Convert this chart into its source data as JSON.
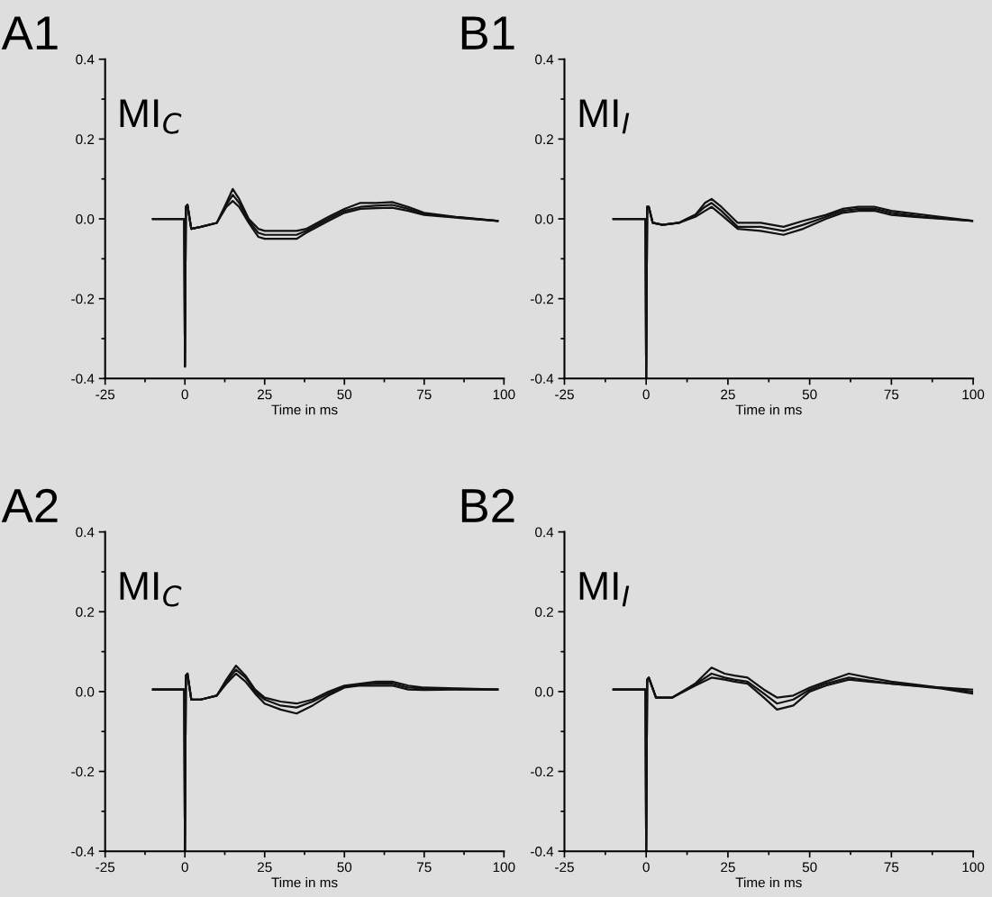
{
  "chart_data": [
    {
      "type": "line",
      "xlabel": "Time in ms",
      "annotations": [
        "A1",
        "MI$_{C}$"
      ],
      "xlim": [
        -25,
        100
      ],
      "ylim": [
        -0.4,
        0.4
      ],
      "xticks": [
        -25,
        0,
        25,
        50,
        75,
        100
      ],
      "yticks": [
        {
          "value": -0.4,
          "label": "-0.4"
        },
        {
          "value": -0.2,
          "label": "-0.2"
        },
        {
          "value": 0,
          "label": "0.0"
        },
        {
          "value": 0.2,
          "label": "0.2"
        },
        {
          "value": 0.4,
          "label": "0.4"
        }
      ],
      "x": [
        -10,
        -0.2,
        0,
        0.3,
        0.8,
        2,
        5,
        10,
        13,
        15,
        17,
        20,
        23,
        25,
        30,
        35,
        38,
        45,
        50,
        55,
        60,
        65,
        70,
        75,
        85,
        98
      ],
      "series": [
        {
          "color": "#111111",
          "values": [
            0,
            0,
            -0.37,
            0.03,
            0.035,
            -0.025,
            -0.02,
            -0.01,
            0.04,
            0.075,
            0.05,
            0,
            -0.025,
            -0.03,
            -0.03,
            -0.03,
            -0.025,
            0.005,
            0.025,
            0.04,
            0.04,
            0.042,
            0.03,
            0.015,
            0.005,
            -0.005
          ]
        },
        {
          "color": "#111111",
          "values": [
            0,
            0,
            -0.37,
            0.03,
            0.035,
            -0.025,
            -0.02,
            -0.01,
            0.035,
            0.06,
            0.04,
            -0.005,
            -0.035,
            -0.04,
            -0.04,
            -0.04,
            -0.03,
            0,
            0.02,
            0.03,
            0.033,
            0.035,
            0.025,
            0.012,
            0.004,
            -0.005
          ]
        },
        {
          "color": "#111111",
          "values": [
            0,
            0,
            -0.37,
            0.03,
            0.035,
            -0.025,
            -0.02,
            -0.01,
            0.03,
            0.045,
            0.03,
            -0.01,
            -0.045,
            -0.05,
            -0.05,
            -0.05,
            -0.035,
            -0.005,
            0.015,
            0.025,
            0.027,
            0.028,
            0.02,
            0.01,
            0.003,
            -0.005
          ]
        }
      ]
    },
    {
      "type": "line",
      "xlabel": "Time in ms",
      "annotations": [
        "B1",
        "MI$_{I}$"
      ],
      "xlim": [
        -25,
        100
      ],
      "ylim": [
        -0.4,
        0.4
      ],
      "xticks": [
        -25,
        0,
        25,
        50,
        75,
        100
      ],
      "yticks": [
        {
          "value": -0.4,
          "label": "-0.4"
        },
        {
          "value": -0.2,
          "label": "-0.2"
        },
        {
          "value": 0,
          "label": "0.0"
        },
        {
          "value": 0.2,
          "label": "0.2"
        },
        {
          "value": 0.4,
          "label": "0.4"
        }
      ],
      "x": [
        -10,
        -0.2,
        0,
        0.3,
        0.8,
        2,
        5,
        10,
        15,
        18,
        20,
        23,
        28,
        35,
        42,
        48,
        55,
        60,
        65,
        70,
        75,
        85,
        100
      ],
      "series": [
        {
          "color": "#111111",
          "values": [
            0,
            0,
            -0.4,
            0.03,
            0.03,
            -0.01,
            -0.015,
            -0.01,
            0.01,
            0.04,
            0.05,
            0.03,
            -0.01,
            -0.01,
            -0.02,
            -0.005,
            0.01,
            0.025,
            0.03,
            0.03,
            0.02,
            0.01,
            -0.005
          ]
        },
        {
          "color": "#111111",
          "values": [
            0,
            0,
            -0.4,
            0.03,
            0.03,
            -0.01,
            -0.015,
            -0.01,
            0.01,
            0.03,
            0.04,
            0.02,
            -0.02,
            -0.02,
            -0.03,
            -0.015,
            0.005,
            0.02,
            0.025,
            0.025,
            0.015,
            0.005,
            -0.005
          ]
        },
        {
          "color": "#111111",
          "values": [
            0,
            0,
            -0.4,
            0.03,
            0.03,
            -0.01,
            -0.015,
            -0.01,
            0.005,
            0.02,
            0.03,
            0.01,
            -0.025,
            -0.03,
            -0.04,
            -0.025,
            0,
            0.015,
            0.02,
            0.02,
            0.01,
            0.003,
            -0.005
          ]
        }
      ]
    },
    {
      "type": "line",
      "xlabel": "Time in ms",
      "annotations": [
        "A2",
        "MI$_{C}$"
      ],
      "xlim": [
        -25,
        100
      ],
      "ylim": [
        -0.4,
        0.4
      ],
      "xticks": [
        -25,
        0,
        25,
        50,
        75,
        100
      ],
      "yticks": [
        {
          "value": -0.4,
          "label": "-0.4"
        },
        {
          "value": -0.2,
          "label": "-0.2"
        },
        {
          "value": 0,
          "label": "0.0"
        },
        {
          "value": 0.2,
          "label": "0.2"
        },
        {
          "value": 0.4,
          "label": "0.4"
        }
      ],
      "x": [
        -10,
        -0.2,
        0,
        0.3,
        0.8,
        2,
        5,
        10,
        13,
        16,
        19,
        22,
        25,
        30,
        35,
        40,
        45,
        50,
        55,
        60,
        65,
        70,
        75,
        85,
        98
      ],
      "series": [
        {
          "color": "#111111",
          "values": [
            0.005,
            0.005,
            -0.4,
            0.04,
            0.045,
            -0.02,
            -0.02,
            -0.01,
            0.03,
            0.065,
            0.04,
            0.005,
            -0.015,
            -0.025,
            -0.03,
            -0.02,
            0,
            0.015,
            0.02,
            0.025,
            0.025,
            0.015,
            0.01,
            0.008,
            0.005
          ]
        },
        {
          "color": "#111111",
          "values": [
            0.005,
            0.005,
            -0.4,
            0.04,
            0.045,
            -0.02,
            -0.02,
            -0.01,
            0.025,
            0.055,
            0.035,
            0,
            -0.02,
            -0.035,
            -0.04,
            -0.025,
            -0.005,
            0.012,
            0.018,
            0.02,
            0.02,
            0.01,
            0.008,
            0.006,
            0.005
          ]
        },
        {
          "color": "#111111",
          "values": [
            0.005,
            0.005,
            -0.4,
            0.04,
            0.045,
            -0.02,
            -0.02,
            -0.01,
            0.02,
            0.045,
            0.025,
            -0.005,
            -0.03,
            -0.045,
            -0.055,
            -0.035,
            -0.01,
            0.01,
            0.015,
            0.015,
            0.015,
            0.005,
            0.004,
            0.005,
            0.005
          ]
        }
      ]
    },
    {
      "type": "line",
      "xlabel": "Time in ms",
      "annotations": [
        "B2",
        "MI$_{I}$"
      ],
      "xlim": [
        -25,
        100
      ],
      "ylim": [
        -0.4,
        0.4
      ],
      "xticks": [
        -25,
        0,
        25,
        50,
        75,
        100
      ],
      "yticks": [
        {
          "value": -0.4,
          "label": "-0.4"
        },
        {
          "value": -0.2,
          "label": "-0.2"
        },
        {
          "value": 0,
          "label": "0.0"
        },
        {
          "value": 0.2,
          "label": "0.2"
        },
        {
          "value": 0.4,
          "label": "0.4"
        }
      ],
      "x": [
        -10,
        -0.2,
        0,
        0.3,
        0.8,
        3,
        8,
        15,
        20,
        24,
        27,
        31,
        36,
        40,
        45,
        50,
        55,
        62,
        68,
        75,
        90,
        100
      ],
      "series": [
        {
          "color": "#111111",
          "values": [
            0.005,
            0.005,
            -0.4,
            0.03,
            0.035,
            -0.015,
            -0.015,
            0.02,
            0.06,
            0.045,
            0.04,
            0.035,
            0.005,
            -0.015,
            -0.01,
            0.01,
            0.025,
            0.045,
            0.035,
            0.025,
            0.01,
            0.005
          ]
        },
        {
          "color": "#111111",
          "values": [
            0.005,
            0.005,
            -0.4,
            0.03,
            0.035,
            -0.015,
            -0.015,
            0.018,
            0.045,
            0.035,
            0.03,
            0.025,
            -0.005,
            -0.03,
            -0.02,
            0.005,
            0.02,
            0.035,
            0.028,
            0.02,
            0.01,
            0
          ]
        },
        {
          "color": "#111111",
          "values": [
            0.005,
            0.005,
            -0.4,
            0.03,
            0.035,
            -0.015,
            -0.015,
            0.015,
            0.035,
            0.03,
            0.025,
            0.02,
            -0.015,
            -0.045,
            -0.035,
            0,
            0.015,
            0.03,
            0.025,
            0.02,
            0.008,
            -0.005
          ]
        }
      ]
    }
  ]
}
